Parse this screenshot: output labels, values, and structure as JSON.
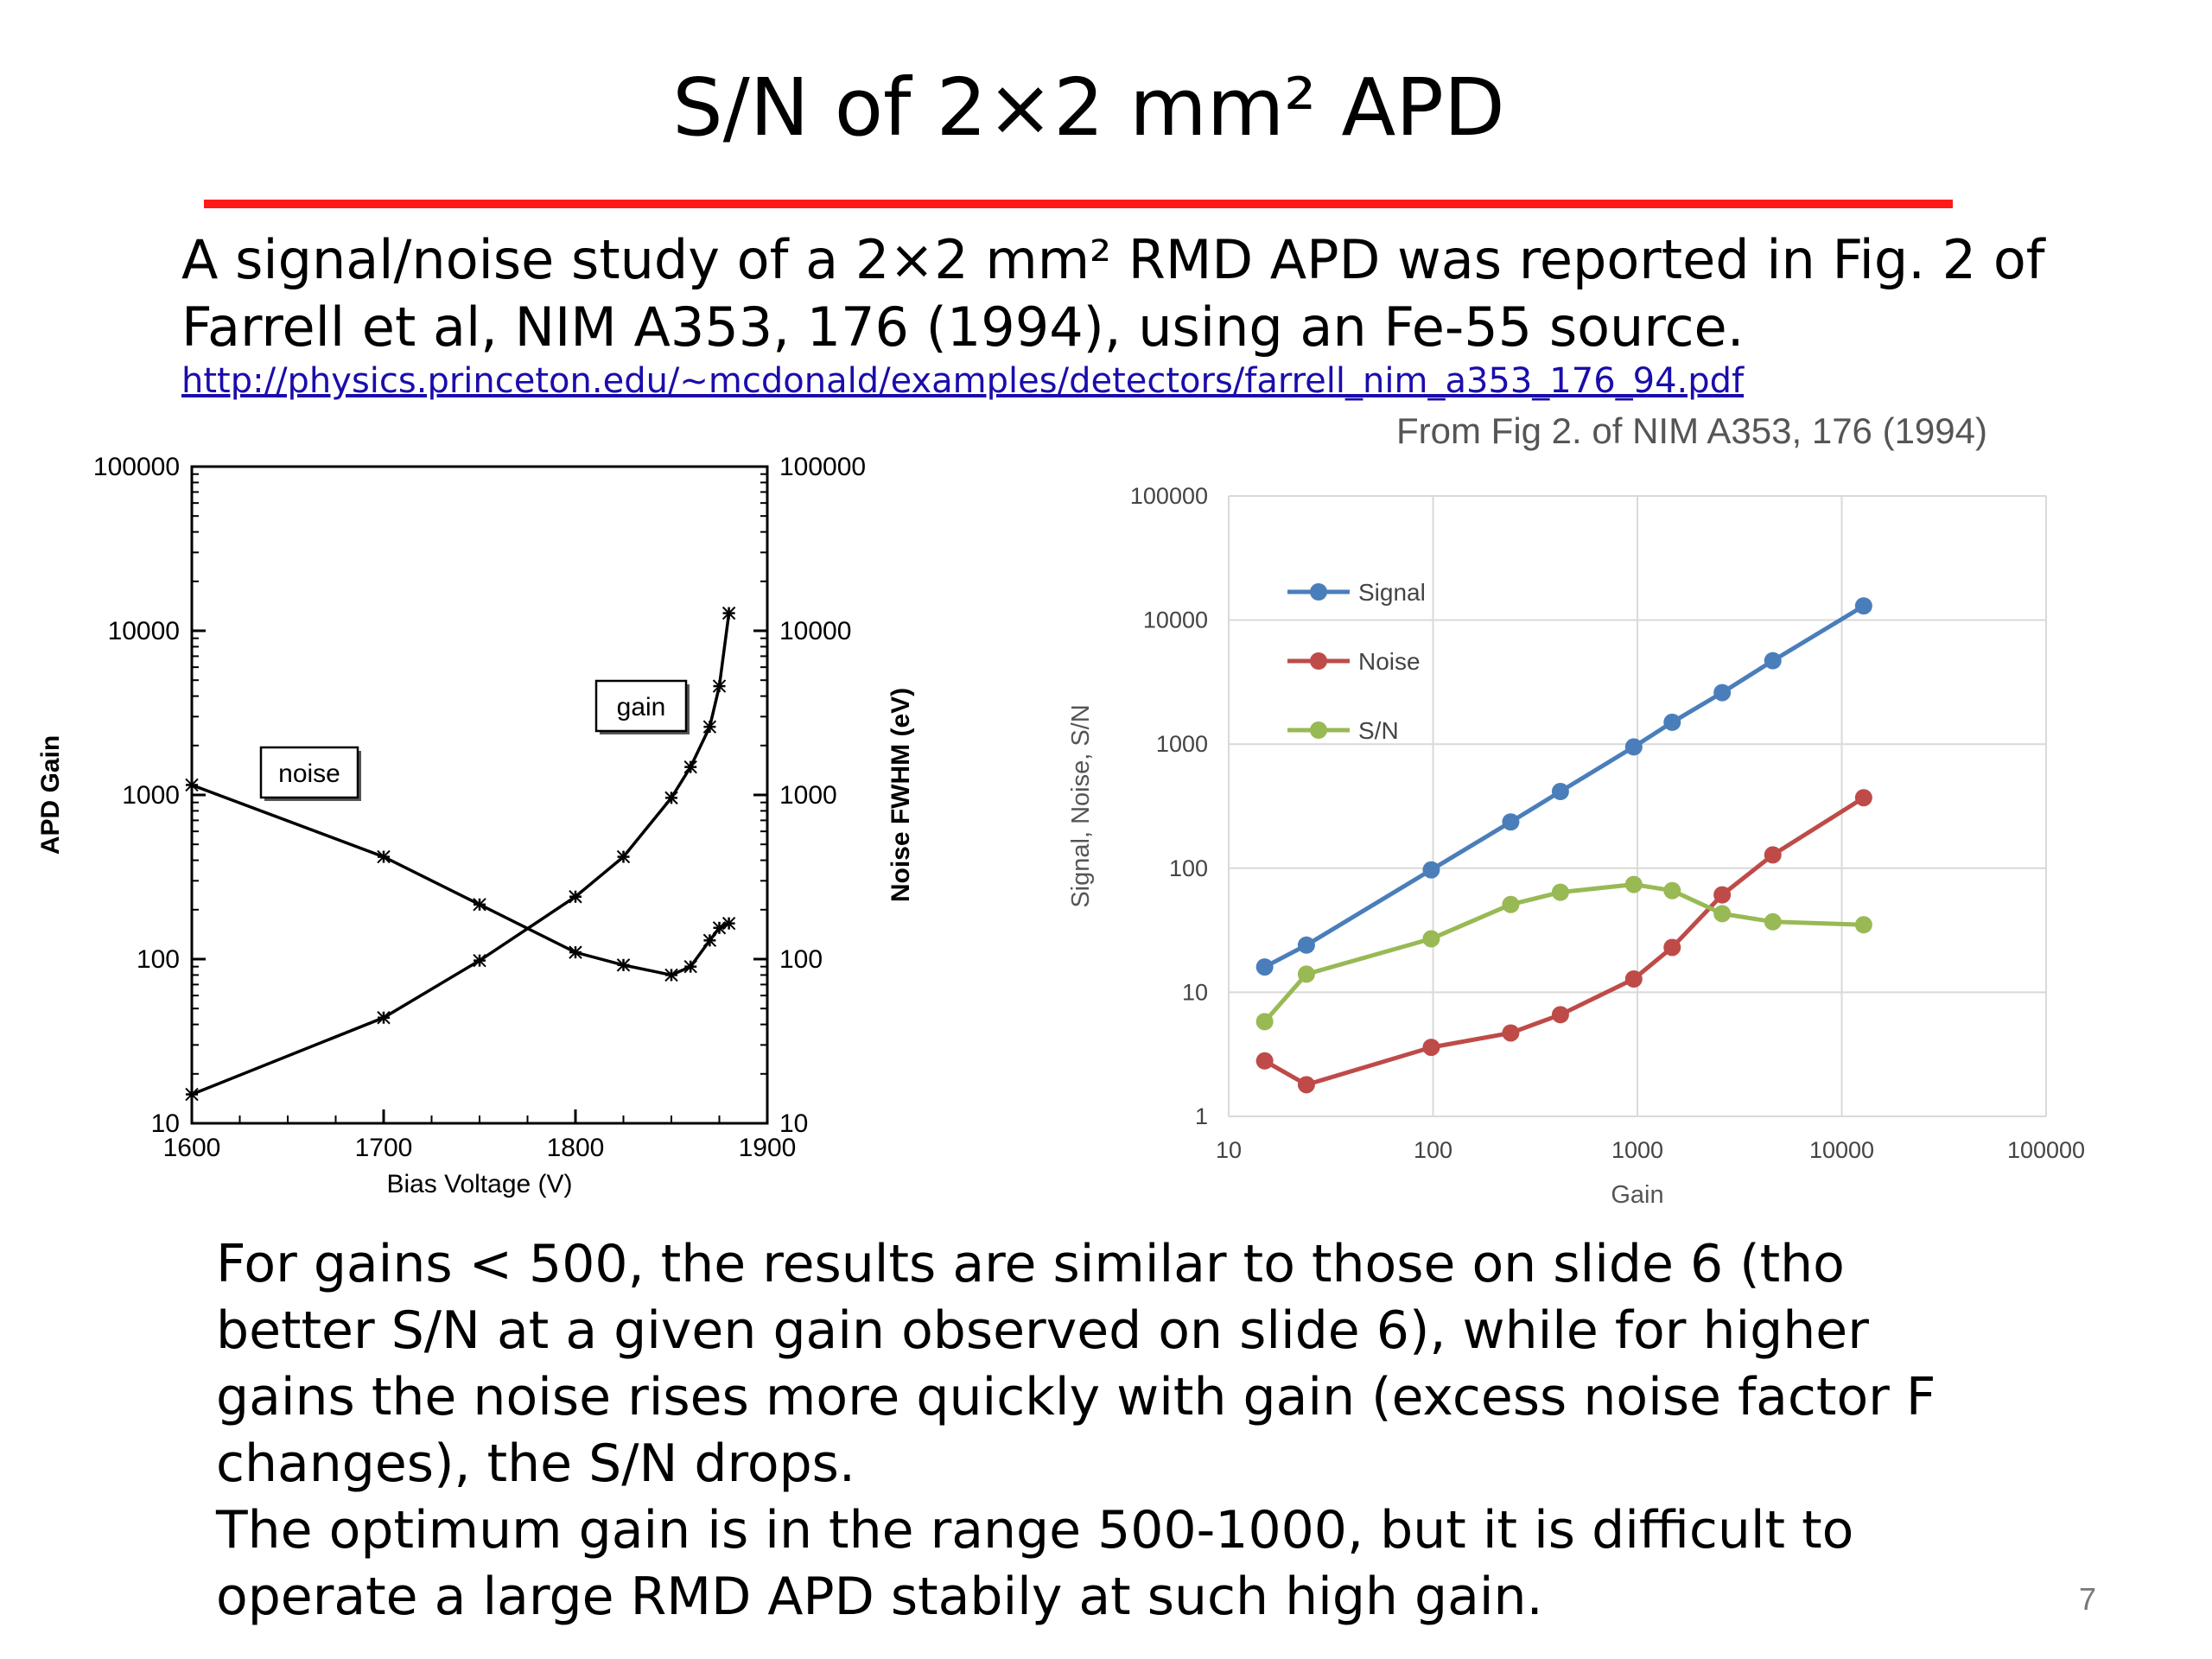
{
  "slide": {
    "title": "S/N of 2×2 mm² APD",
    "intro_line1": "A signal/noise study of a 2×2 mm² RMD APD was reported in Fig. 2 of",
    "intro_line2": "Farrell et al, NIM A353, 176 (1994), using an Fe-55 source.",
    "link": "http://physics.princeton.edu/~mcdonald/examples/detectors/farrell_nim_a353_176_94.pdf",
    "source_note": "From Fig 2. of NIM A353, 176 (1994)",
    "body_lines": [
      "For gains < 500, the results are similar to those on slide 6 (tho",
      "better S/N at a given gain observed on slide 6), while for higher",
      "gains the noise rises more quickly with gain (excess noise factor F",
      "changes), the S/N drops.",
      "The optimum gain is in the range 500-1000, but it is difficult to",
      "operate a large RMD APD stabily at such high gain."
    ],
    "page_number": "7",
    "accent_color": "#ff1a1a",
    "link_color": "#1a0dab"
  },
  "chart_data": [
    {
      "type": "line",
      "xlabel": "Bias Voltage (V)",
      "ylabel": "APD Gain",
      "y2label": "Noise FWHM (eV)",
      "xlim": [
        1600,
        1900
      ],
      "ylim": [
        10,
        100000
      ],
      "y_scale": "log",
      "x_ticks": [
        "1600",
        "1700",
        "1800",
        "1900"
      ],
      "y_ticks": [
        "10",
        "100",
        "1000",
        "10000",
        "100000"
      ],
      "y2_ticks": [
        "10",
        "100",
        "1000",
        "10000",
        "100000"
      ],
      "grid": false,
      "series": [
        {
          "name": "gain",
          "x": [
            1600,
            1700,
            1750,
            1800,
            1825,
            1850,
            1860,
            1870,
            1875,
            1880
          ],
          "y": [
            15,
            44,
            98,
            240,
            420,
            960,
            1480,
            2600,
            4600,
            12800
          ]
        },
        {
          "name": "noise",
          "x": [
            1600,
            1700,
            1750,
            1800,
            1825,
            1850,
            1860,
            1870,
            1875,
            1880
          ],
          "y": [
            1150,
            420,
            215,
            110,
            92,
            80,
            90,
            130,
            155,
            165
          ]
        }
      ]
    },
    {
      "type": "line",
      "xlabel": "Gain",
      "ylabel": "Signal, Noise, S/N",
      "xlim": [
        10,
        100000
      ],
      "ylim": [
        1,
        100000
      ],
      "x_scale": "log",
      "y_scale": "log",
      "x_ticks": [
        "10",
        "100",
        "1000",
        "10000",
        "100000"
      ],
      "y_ticks": [
        "1",
        "10",
        "100",
        "1000",
        "10000",
        "100000"
      ],
      "grid": true,
      "legend": "top-left",
      "series": [
        {
          "name": "Signal",
          "color": "#4a7ebb",
          "x": [
            15,
            24,
            98,
            240,
            420,
            960,
            1480,
            2600,
            4600,
            12800
          ],
          "y": [
            16,
            24,
            97,
            236,
            415,
            950,
            1500,
            2600,
            4700,
            13000
          ]
        },
        {
          "name": "Noise",
          "color": "#be4b48",
          "x": [
            15,
            24,
            98,
            240,
            420,
            960,
            1480,
            2600,
            4600,
            12800
          ],
          "y": [
            2.8,
            1.8,
            3.6,
            4.7,
            6.6,
            12.8,
            23,
            61,
            128,
            370
          ]
        },
        {
          "name": "S/N",
          "color": "#98b954",
          "x": [
            15,
            24,
            98,
            240,
            420,
            960,
            1480,
            2600,
            4600,
            12800
          ],
          "y": [
            5.8,
            14,
            27,
            51,
            64,
            74,
            66,
            43,
            37,
            35
          ]
        }
      ]
    }
  ]
}
